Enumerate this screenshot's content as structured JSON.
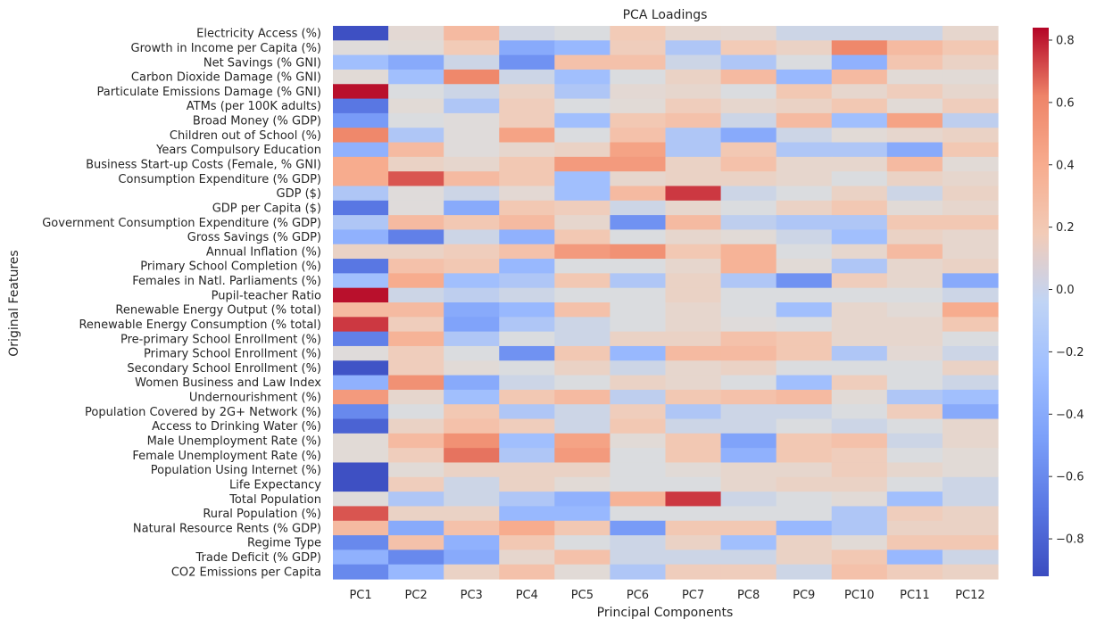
{
  "chart_data": {
    "type": "heatmap",
    "title": "PCA Loadings",
    "xlabel": "Principal Components",
    "ylabel": "Original Features",
    "x": [
      "PC1",
      "PC2",
      "PC3",
      "PC4",
      "PC5",
      "PC6",
      "PC7",
      "PC8",
      "PC9",
      "PC10",
      "PC11",
      "PC12"
    ],
    "y": [
      "Electricity Access (%)",
      "Growth in Income per Capita (%)",
      "Net Savings (% GNI)",
      "Carbon Dioxide Damage (% GNI)",
      "Particulate Emissions Damage (% GNI)",
      "ATMs (per 100K adults)",
      "Broad Money (% GDP)",
      "Children out of School (%)",
      "Years Compulsory Education",
      "Business Start-up Costs (Female, % GNI)",
      "Consumption Expenditure (% GDP)",
      "GDP ($)",
      "GDP per Capita ($)",
      "Government Consumption Expenditure (% GDP)",
      "Gross Savings (% GDP)",
      "Annual Inflation (%)",
      "Primary School Completion (%)",
      "Females in Natl. Parliaments (%)",
      "Pupil-teacher Ratio",
      "Renewable Energy Output (% total)",
      "Renewable Energy Consumption (% total)",
      "Pre-primary School Enrollment (%)",
      "Primary School Enrollment (%)",
      "Secondary School Enrollment (%)",
      "Women Business and Law Index",
      "Undernourishment (%)",
      "Population Covered by 2G+ Network (%)",
      "Access to Drinking Water (%)",
      "Male Unemployment Rate (%)",
      "Female Unemployment Rate (%)",
      "Population Using Internet (%)",
      "Life Expectancy",
      "Total Population",
      "Rural Population (%)",
      "Natural Resource Rents (% GDP)",
      "Regime Type",
      "Trade Deficit (% GDP)",
      "CO2 Emissions per Capita"
    ],
    "values": [
      [
        -0.9,
        0.02,
        0.3,
        -0.08,
        -0.05,
        0.18,
        0.05,
        0.03,
        -0.1,
        -0.1,
        -0.1,
        0.05
      ],
      [
        -0.02,
        0.0,
        0.18,
        -0.4,
        -0.3,
        0.15,
        -0.2,
        0.18,
        0.1,
        0.6,
        0.3,
        0.2
      ],
      [
        -0.25,
        -0.4,
        -0.1,
        -0.55,
        0.25,
        0.25,
        -0.1,
        -0.2,
        -0.05,
        -0.35,
        0.22,
        0.1
      ],
      [
        0.0,
        -0.25,
        0.6,
        -0.1,
        -0.25,
        -0.05,
        0.1,
        0.3,
        -0.3,
        0.3,
        0.0,
        0.0
      ],
      [
        0.82,
        -0.05,
        -0.1,
        0.1,
        -0.2,
        0.02,
        0.05,
        -0.05,
        0.2,
        0.05,
        0.15,
        0.05
      ],
      [
        -0.7,
        0.0,
        -0.2,
        0.15,
        -0.05,
        0.0,
        0.15,
        0.05,
        0.1,
        0.2,
        0.0,
        0.15
      ],
      [
        -0.5,
        -0.05,
        -0.02,
        0.15,
        -0.25,
        0.2,
        0.25,
        -0.1,
        0.3,
        -0.25,
        0.45,
        -0.15
      ],
      [
        0.6,
        -0.2,
        -0.02,
        0.45,
        -0.05,
        0.25,
        -0.2,
        -0.4,
        -0.1,
        0.0,
        0.05,
        0.1
      ],
      [
        -0.35,
        0.3,
        -0.02,
        0.05,
        0.1,
        0.45,
        -0.2,
        0.2,
        -0.2,
        -0.2,
        -0.4,
        0.2
      ],
      [
        0.4,
        0.1,
        0.05,
        0.2,
        0.5,
        0.5,
        0.1,
        0.25,
        0.05,
        0.05,
        0.3,
        0.0
      ],
      [
        0.4,
        0.7,
        0.3,
        0.2,
        -0.25,
        0.05,
        0.1,
        0.1,
        0.05,
        -0.05,
        0.1,
        0.05
      ],
      [
        -0.2,
        -0.02,
        -0.1,
        0.02,
        -0.25,
        0.3,
        0.75,
        -0.1,
        -0.05,
        0.1,
        -0.1,
        0.1
      ],
      [
        -0.7,
        -0.02,
        -0.4,
        0.2,
        0.15,
        -0.1,
        0.05,
        -0.05,
        0.1,
        0.2,
        0.0,
        0.05
      ],
      [
        -0.2,
        0.3,
        0.2,
        0.3,
        0.05,
        -0.55,
        0.3,
        -0.15,
        -0.2,
        -0.2,
        0.2,
        0.2
      ],
      [
        -0.35,
        -0.65,
        -0.1,
        -0.35,
        0.2,
        -0.05,
        0.05,
        0.0,
        -0.1,
        -0.25,
        0.1,
        0.05
      ],
      [
        0.1,
        0.1,
        0.15,
        0.25,
        0.5,
        0.55,
        0.2,
        0.35,
        -0.05,
        0.05,
        0.3,
        0.05
      ],
      [
        -0.7,
        0.25,
        0.2,
        -0.3,
        -0.05,
        -0.05,
        0.05,
        0.35,
        0.0,
        -0.2,
        0.05,
        0.1
      ],
      [
        -0.25,
        0.4,
        -0.25,
        -0.2,
        0.2,
        -0.2,
        0.1,
        -0.2,
        -0.55,
        0.15,
        0.05,
        -0.4
      ],
      [
        0.82,
        -0.1,
        -0.15,
        -0.1,
        -0.05,
        -0.05,
        0.1,
        -0.05,
        -0.05,
        -0.05,
        -0.05,
        -0.1
      ],
      [
        0.3,
        0.3,
        -0.4,
        -0.3,
        0.25,
        -0.05,
        0.05,
        -0.05,
        -0.25,
        0.05,
        0.0,
        0.4
      ],
      [
        0.75,
        0.15,
        -0.45,
        -0.2,
        -0.1,
        -0.05,
        0.05,
        -0.02,
        -0.05,
        0.05,
        0.05,
        0.2
      ],
      [
        -0.65,
        0.35,
        -0.2,
        -0.05,
        -0.1,
        0.1,
        0.1,
        0.25,
        0.2,
        0.05,
        0.05,
        -0.05
      ],
      [
        -0.02,
        0.15,
        -0.05,
        -0.55,
        0.2,
        -0.3,
        0.3,
        0.3,
        0.2,
        -0.2,
        0.02,
        -0.1
      ],
      [
        -0.88,
        0.15,
        0.0,
        -0.05,
        0.1,
        -0.1,
        0.05,
        0.1,
        -0.05,
        -0.05,
        -0.05,
        0.1
      ],
      [
        -0.35,
        0.55,
        -0.4,
        -0.1,
        -0.05,
        0.1,
        0.05,
        -0.05,
        -0.25,
        0.15,
        -0.05,
        -0.1
      ],
      [
        0.5,
        0.05,
        -0.25,
        0.2,
        0.3,
        -0.15,
        0.2,
        0.25,
        0.3,
        0.0,
        -0.2,
        -0.25
      ],
      [
        -0.6,
        -0.05,
        0.2,
        -0.2,
        -0.1,
        0.15,
        -0.2,
        -0.1,
        -0.1,
        -0.05,
        0.15,
        -0.4
      ],
      [
        -0.8,
        0.1,
        0.25,
        0.15,
        -0.1,
        0.2,
        -0.1,
        -0.1,
        -0.05,
        -0.1,
        -0.05,
        0.05
      ],
      [
        0.0,
        0.3,
        0.55,
        -0.25,
        0.45,
        0.0,
        0.2,
        -0.45,
        0.2,
        0.25,
        -0.1,
        0.05
      ],
      [
        0.0,
        0.15,
        0.65,
        -0.2,
        0.5,
        -0.05,
        0.2,
        -0.35,
        0.2,
        0.15,
        -0.05,
        0.0
      ],
      [
        -0.9,
        0.0,
        0.1,
        0.1,
        0.1,
        -0.05,
        0.0,
        0.05,
        0.05,
        0.15,
        0.05,
        0.0
      ],
      [
        -0.9,
        0.15,
        -0.1,
        0.1,
        0.0,
        -0.05,
        -0.05,
        0.05,
        0.1,
        0.1,
        -0.05,
        -0.1
      ],
      [
        -0.02,
        -0.2,
        -0.1,
        -0.2,
        -0.35,
        0.35,
        0.75,
        -0.1,
        -0.05,
        0.0,
        -0.25,
        -0.1
      ],
      [
        0.7,
        0.1,
        0.1,
        -0.3,
        -0.3,
        -0.05,
        -0.05,
        -0.05,
        -0.05,
        -0.2,
        0.15,
        0.1
      ],
      [
        0.3,
        -0.4,
        0.25,
        0.4,
        0.2,
        -0.5,
        0.2,
        0.2,
        -0.3,
        -0.2,
        0.1,
        0.1
      ],
      [
        -0.6,
        0.25,
        -0.35,
        0.2,
        -0.05,
        -0.1,
        0.1,
        -0.25,
        0.1,
        0.0,
        0.2,
        0.2
      ],
      [
        -0.35,
        -0.6,
        -0.4,
        0.05,
        0.25,
        -0.1,
        -0.1,
        -0.1,
        0.1,
        0.2,
        -0.3,
        -0.1
      ],
      [
        -0.6,
        -0.3,
        0.1,
        0.25,
        0.0,
        -0.2,
        0.15,
        0.15,
        -0.1,
        0.25,
        0.15,
        0.1
      ]
    ],
    "vmin": -0.92,
    "vmax": 0.84,
    "colormap": "coolwarm",
    "colorbar_ticks": [
      -0.8,
      -0.6,
      -0.4,
      -0.2,
      0.0,
      0.2,
      0.4,
      0.6,
      0.8
    ],
    "colorbar_tick_labels": [
      "−0.8",
      "−0.6",
      "−0.4",
      "−0.2",
      "0.0",
      "0.2",
      "0.4",
      "0.6",
      "0.8"
    ]
  }
}
